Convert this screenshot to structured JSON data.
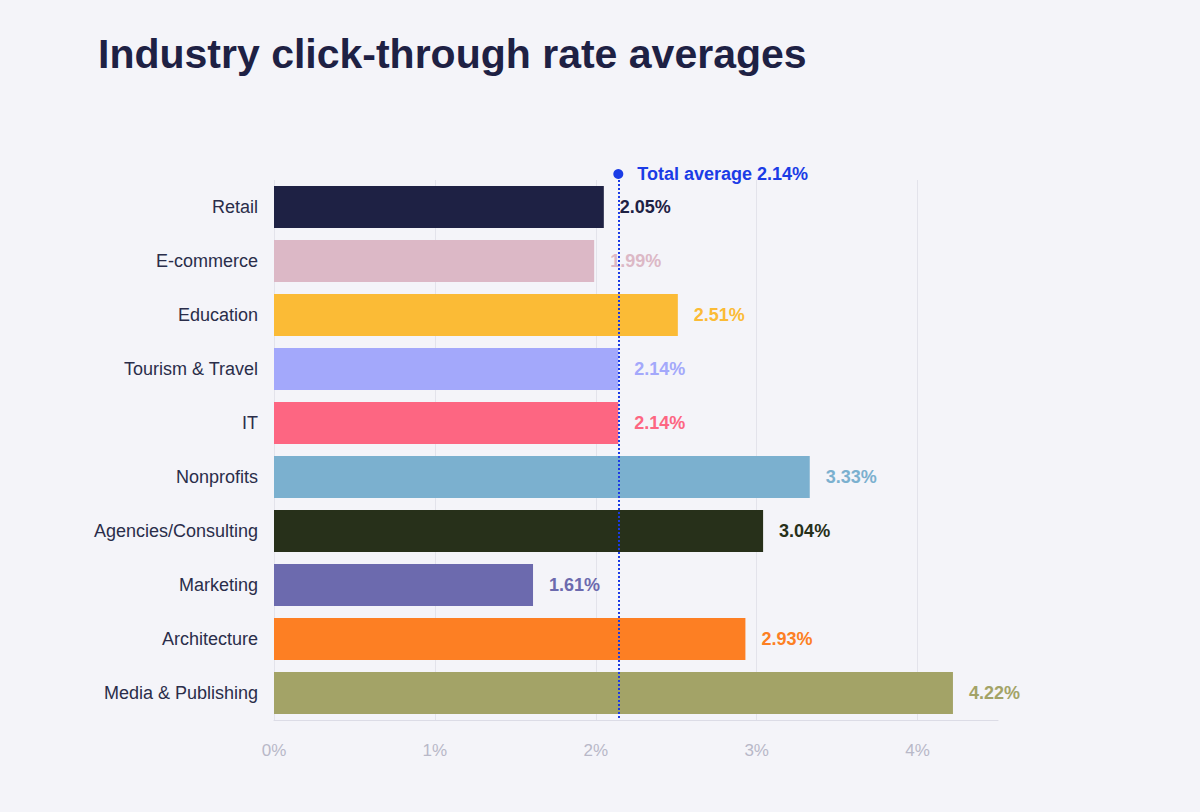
{
  "chart_data": {
    "type": "bar",
    "orientation": "horizontal",
    "title": "Industry click-through rate averages",
    "categories": [
      "Retail",
      "E-commerce",
      "Education",
      "Tourism & Travel",
      "IT",
      "Nonprofits",
      "Agencies/Consulting",
      "Marketing",
      "Architecture",
      "Media & Publishing"
    ],
    "values": [
      2.05,
      1.99,
      2.51,
      2.14,
      2.14,
      3.33,
      3.04,
      1.61,
      2.93,
      4.22
    ],
    "value_labels": [
      "2.05%",
      "1.99%",
      "2.51%",
      "2.14%",
      "2.14%",
      "3.33%",
      "3.04%",
      "1.61%",
      "2.93%",
      "4.22%"
    ],
    "colors": [
      "#1e2144",
      "#dcb8c6",
      "#fbbb36",
      "#a3a8fb",
      "#fd6682",
      "#7bb0cf",
      "#27301a",
      "#6c6aae",
      "#fd7f23",
      "#a3a367"
    ],
    "data_labels": true,
    "xlim": [
      0,
      4.5
    ],
    "xticks": [
      {
        "value": 0,
        "label": "0%"
      },
      {
        "value": 1,
        "label": "1%"
      },
      {
        "value": 2,
        "label": "2%"
      },
      {
        "value": 3,
        "label": "3%"
      },
      {
        "value": 4,
        "label": "4%"
      }
    ],
    "grid": true,
    "annotations": [
      {
        "text": "Total average 2.14%",
        "x": 2.14,
        "color": "#1b3ce6"
      }
    ]
  }
}
